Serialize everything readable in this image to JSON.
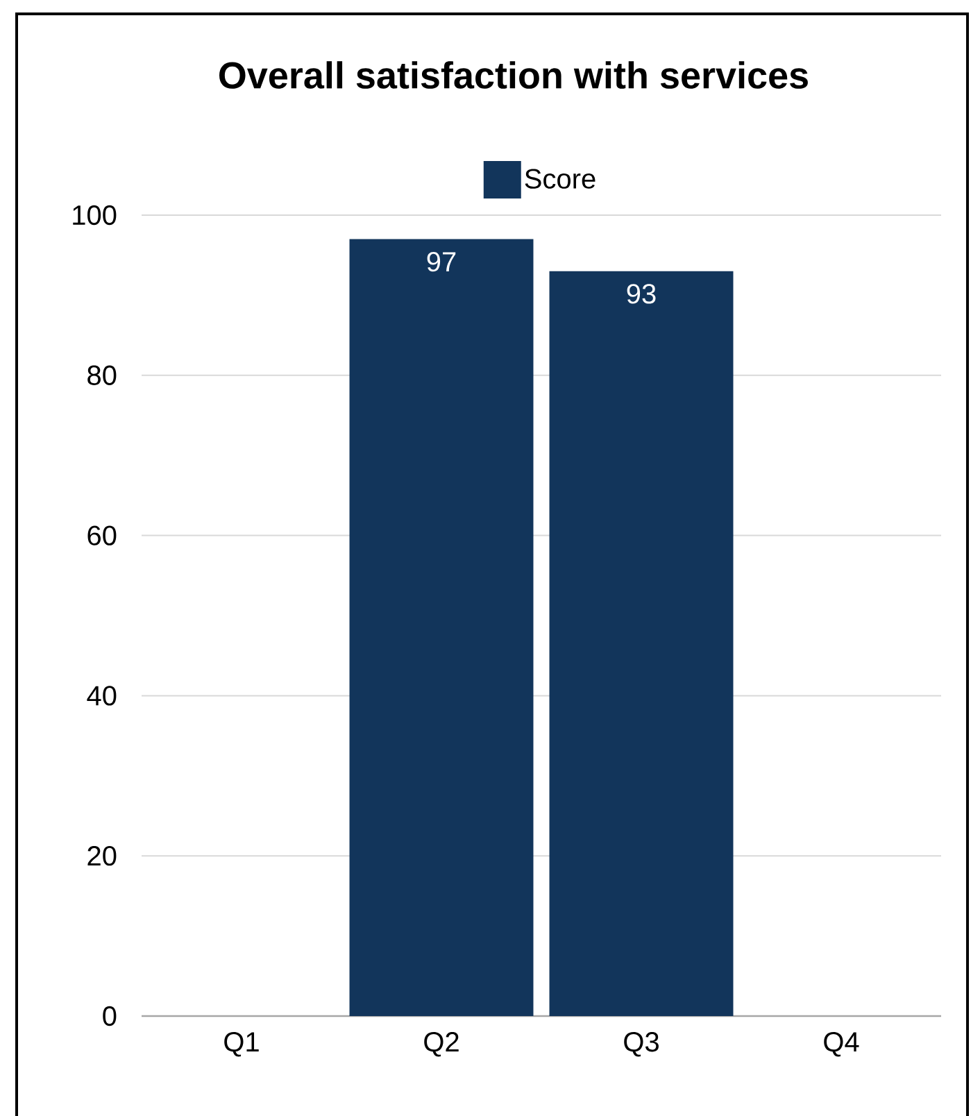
{
  "chart_data": {
    "type": "bar",
    "title": "Overall satisfaction with services",
    "categories": [
      "Q1",
      "Q2",
      "Q3",
      "Q4"
    ],
    "series": [
      {
        "name": "Score",
        "color": "#12355b",
        "values": [
          null,
          97,
          93,
          null
        ]
      }
    ],
    "ylim": [
      0,
      100
    ],
    "yticks": [
      0,
      20,
      40,
      60,
      80,
      100
    ],
    "grid": "y",
    "legend": "top",
    "data_labels": true
  }
}
